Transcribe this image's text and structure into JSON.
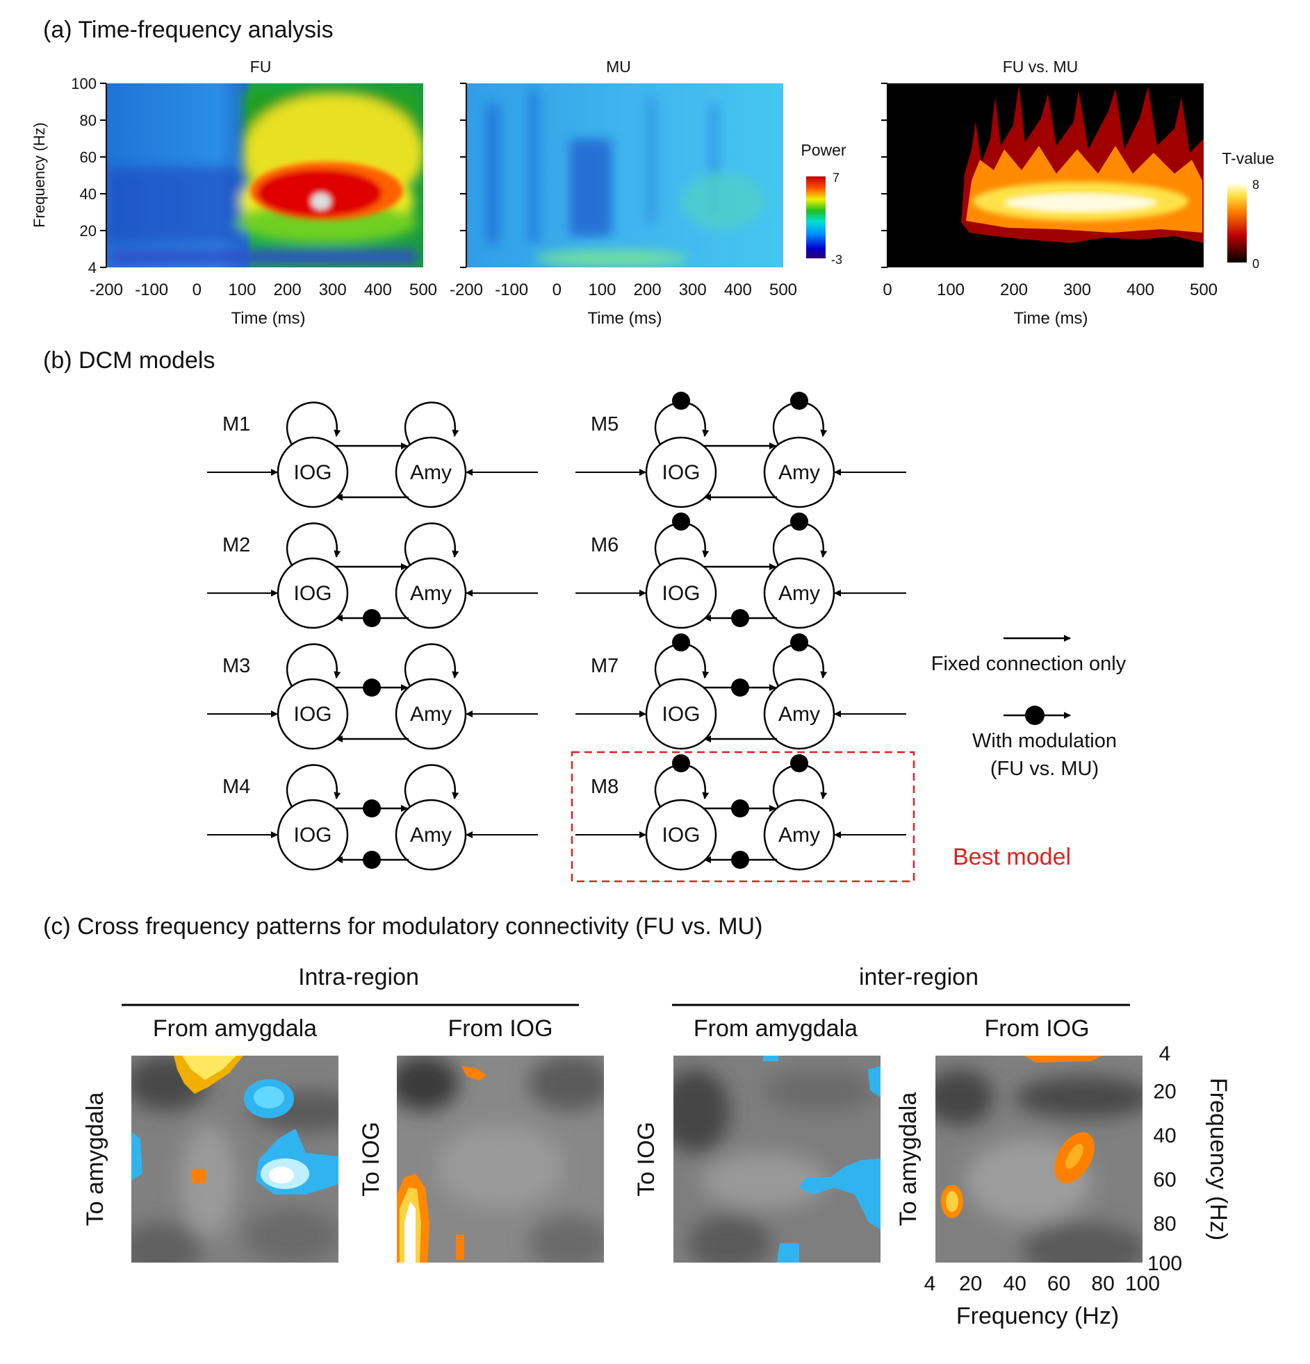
{
  "panel_a": {
    "heading": "(a) Time-frequency analysis",
    "plots": [
      {
        "title": "FU",
        "xlabel": "Time (ms)",
        "ylabel": "Frequency (Hz)",
        "xticks": [
          "-200",
          "-100",
          "0",
          "100",
          "200",
          "300",
          "400",
          "500"
        ]
      },
      {
        "title": "MU",
        "xlabel": "Time (ms)",
        "xticks": [
          "-200",
          "-100",
          "0",
          "100",
          "200",
          "300",
          "400",
          "500"
        ]
      },
      {
        "title": "FU vs. MU",
        "xlabel": "Time (ms)",
        "xticks": [
          "0",
          "100",
          "200",
          "300",
          "400",
          "500"
        ]
      }
    ],
    "yticks": [
      "100",
      "80",
      "60",
      "40",
      "20",
      "4"
    ],
    "colorbar_power": {
      "label": "Power",
      "max": "7",
      "min": "-3"
    },
    "colorbar_t": {
      "label": "T-value",
      "max": "8",
      "min": "0"
    }
  },
  "panel_b": {
    "heading": "(b) DCM models",
    "node_left": "IOG",
    "node_right": "Amy",
    "models": [
      {
        "label": "M1",
        "self_mod": false,
        "forward_mod": false,
        "backward_mod": false
      },
      {
        "label": "M2",
        "self_mod": false,
        "forward_mod": false,
        "backward_mod": true
      },
      {
        "label": "M3",
        "self_mod": false,
        "forward_mod": true,
        "backward_mod": false
      },
      {
        "label": "M4",
        "self_mod": false,
        "forward_mod": true,
        "backward_mod": true
      },
      {
        "label": "M5",
        "self_mod": true,
        "forward_mod": false,
        "backward_mod": false
      },
      {
        "label": "M6",
        "self_mod": true,
        "forward_mod": false,
        "backward_mod": true
      },
      {
        "label": "M7",
        "self_mod": true,
        "forward_mod": true,
        "backward_mod": false
      },
      {
        "label": "M8",
        "self_mod": true,
        "forward_mod": true,
        "backward_mod": true
      }
    ],
    "legend_fixed": "Fixed connection only",
    "legend_mod_line1": "With modulation",
    "legend_mod_line2": "(FU vs. MU)",
    "best_model": "Best model",
    "colors": {
      "best": "#e02020"
    }
  },
  "panel_c": {
    "heading": "(c) Cross frequency patterns for modulatory connectivity (FU vs. MU)",
    "group_left": "Intra-region",
    "group_right": "inter-region",
    "plots": [
      {
        "top": "From amygdala",
        "side": "To amygdala"
      },
      {
        "top": "From IOG",
        "side": "To IOG"
      },
      {
        "top": "From amygdala",
        "side": "To IOG"
      },
      {
        "top": "From IOG",
        "side": "To amygdala"
      }
    ],
    "xticks": [
      "4",
      "20",
      "40",
      "60",
      "80",
      "100"
    ],
    "yticks": [
      "4",
      "20",
      "40",
      "60",
      "80",
      "100"
    ],
    "xlabel": "Frequency (Hz)",
    "ylabel": "Frequency (Hz)"
  }
}
